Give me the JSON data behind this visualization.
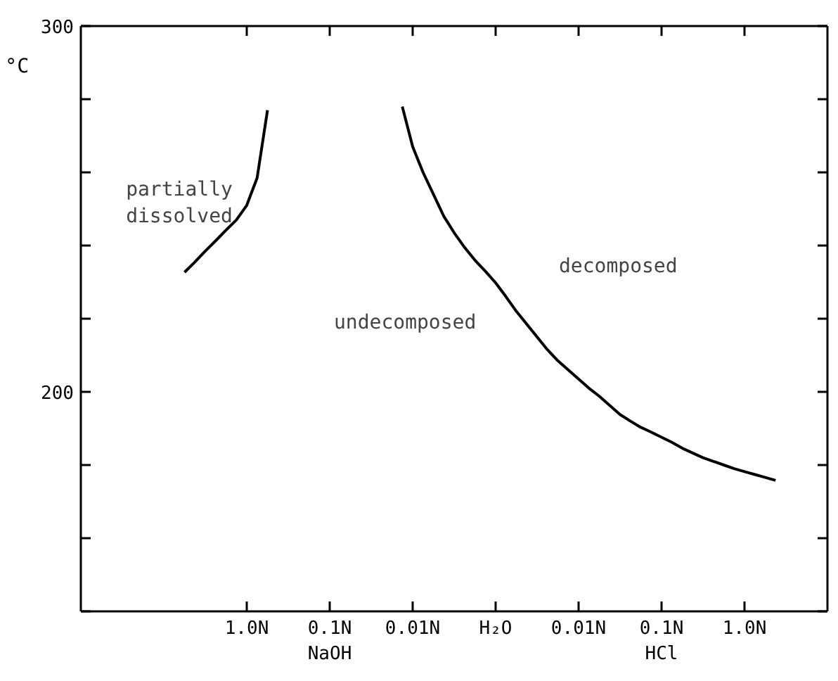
{
  "chart_data": {
    "type": "line",
    "ylabel": "°C",
    "categories": [
      null,
      null,
      null,
      null,
      null,
      null,
      null,
      null,
      null,
      null,
      null,
      null,
      null,
      null,
      null,
      null,
      "1.0N",
      null,
      null,
      null,
      null,
      null,
      null,
      null,
      "0.1N\nNaOH",
      null,
      null,
      null,
      null,
      null,
      null,
      null,
      "0.01N",
      null,
      null,
      null,
      null,
      null,
      null,
      null,
      "H₂O",
      null,
      null,
      null,
      null,
      null,
      null,
      null,
      "0.01N",
      null,
      null,
      null,
      null,
      null,
      null,
      null,
      "0.1N\nHCl",
      null,
      null,
      null,
      null,
      null,
      null,
      null,
      "1.0N",
      null,
      null,
      null,
      null,
      null,
      null,
      null,
      null
    ],
    "ylim": [
      140,
      300
    ],
    "yticks": [
      {
        "value": 140,
        "label": null
      },
      {
        "value": 160,
        "label": null
      },
      {
        "value": 180,
        "label": null
      },
      200,
      {
        "value": 220,
        "label": null
      },
      {
        "value": 240,
        "label": null
      },
      {
        "value": 260,
        "label": null
      },
      {
        "value": 280,
        "label": null
      },
      300
    ],
    "series": [
      {
        "color": "#000000",
        "values": [
          null,
          null,
          null,
          null,
          null,
          null,
          null,
          null,
          null,
          null,
          232.7,
          235.5,
          238.5,
          241.3,
          244.2,
          247,
          251,
          258.5,
          277,
          null,
          null,
          null,
          null,
          null,
          null,
          null,
          null,
          null,
          null,
          null,
          null,
          null,
          null,
          null,
          null,
          null,
          null,
          null,
          null,
          null,
          null,
          null,
          null,
          null,
          null,
          null,
          null,
          null,
          null,
          null,
          null,
          null,
          null,
          null,
          null,
          null,
          null,
          null,
          null,
          null,
          null,
          null,
          null,
          null,
          null,
          null,
          null,
          null,
          null,
          null,
          null,
          null,
          null
        ]
      },
      {
        "color": "#000000",
        "values": [
          null,
          null,
          null,
          null,
          null,
          null,
          null,
          null,
          null,
          null,
          null,
          null,
          null,
          null,
          null,
          null,
          null,
          null,
          null,
          null,
          null,
          null,
          null,
          null,
          null,
          null,
          null,
          null,
          null,
          null,
          null,
          278,
          267,
          260,
          254,
          248,
          243.5,
          239.5,
          236,
          233,
          229.8,
          226,
          222,
          218.5,
          215,
          211.5,
          208.5,
          206,
          203.5,
          201,
          198.8,
          196.3,
          193.8,
          192,
          190.3,
          189,
          187.6,
          186.2,
          184.6,
          183.3,
          182,
          181,
          180,
          179,
          178.2,
          177.4,
          176.6,
          175.8,
          null,
          null,
          null,
          null,
          null
        ]
      }
    ],
    "annotations": [
      "partially\ndissolved",
      "undecomposed",
      "decomposed"
    ],
    "grid": false,
    "marker": "none",
    "line_style": "solid"
  }
}
